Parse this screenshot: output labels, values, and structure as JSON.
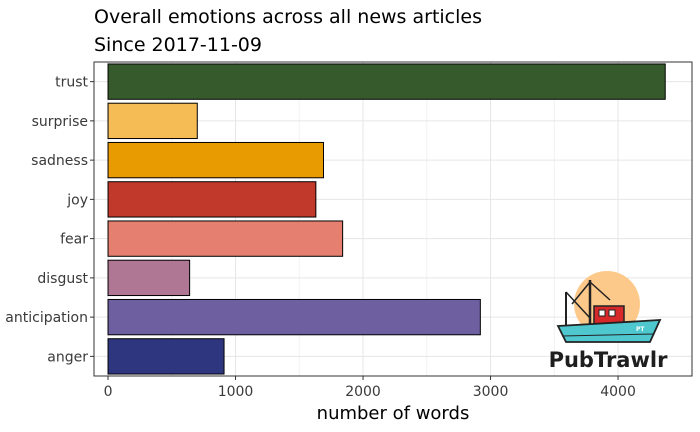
{
  "chart_data": {
    "type": "bar",
    "orientation": "horizontal",
    "title": "Overall emotions across all news articles",
    "subtitle": "Since 2017-11-09",
    "xlabel": "number of words",
    "ylabel": "",
    "xlim": [
      -110,
      4580
    ],
    "xticks": [
      0,
      1000,
      2000,
      3000,
      4000
    ],
    "grid": true,
    "legend": "none",
    "categories": [
      "trust",
      "surprise",
      "sadness",
      "joy",
      "fear",
      "disgust",
      "anticipation",
      "anger"
    ],
    "values": [
      4370,
      700,
      1690,
      1630,
      1840,
      640,
      2920,
      910
    ],
    "colors": [
      "#375a2d",
      "#f5bb54",
      "#e89b00",
      "#c0392b",
      "#e57f6f",
      "#b07795",
      "#6d5fa0",
      "#2f3680"
    ]
  },
  "logo": {
    "name": "boat-logo-icon",
    "text": "PubTrawlr",
    "boat_tag": "PT"
  }
}
